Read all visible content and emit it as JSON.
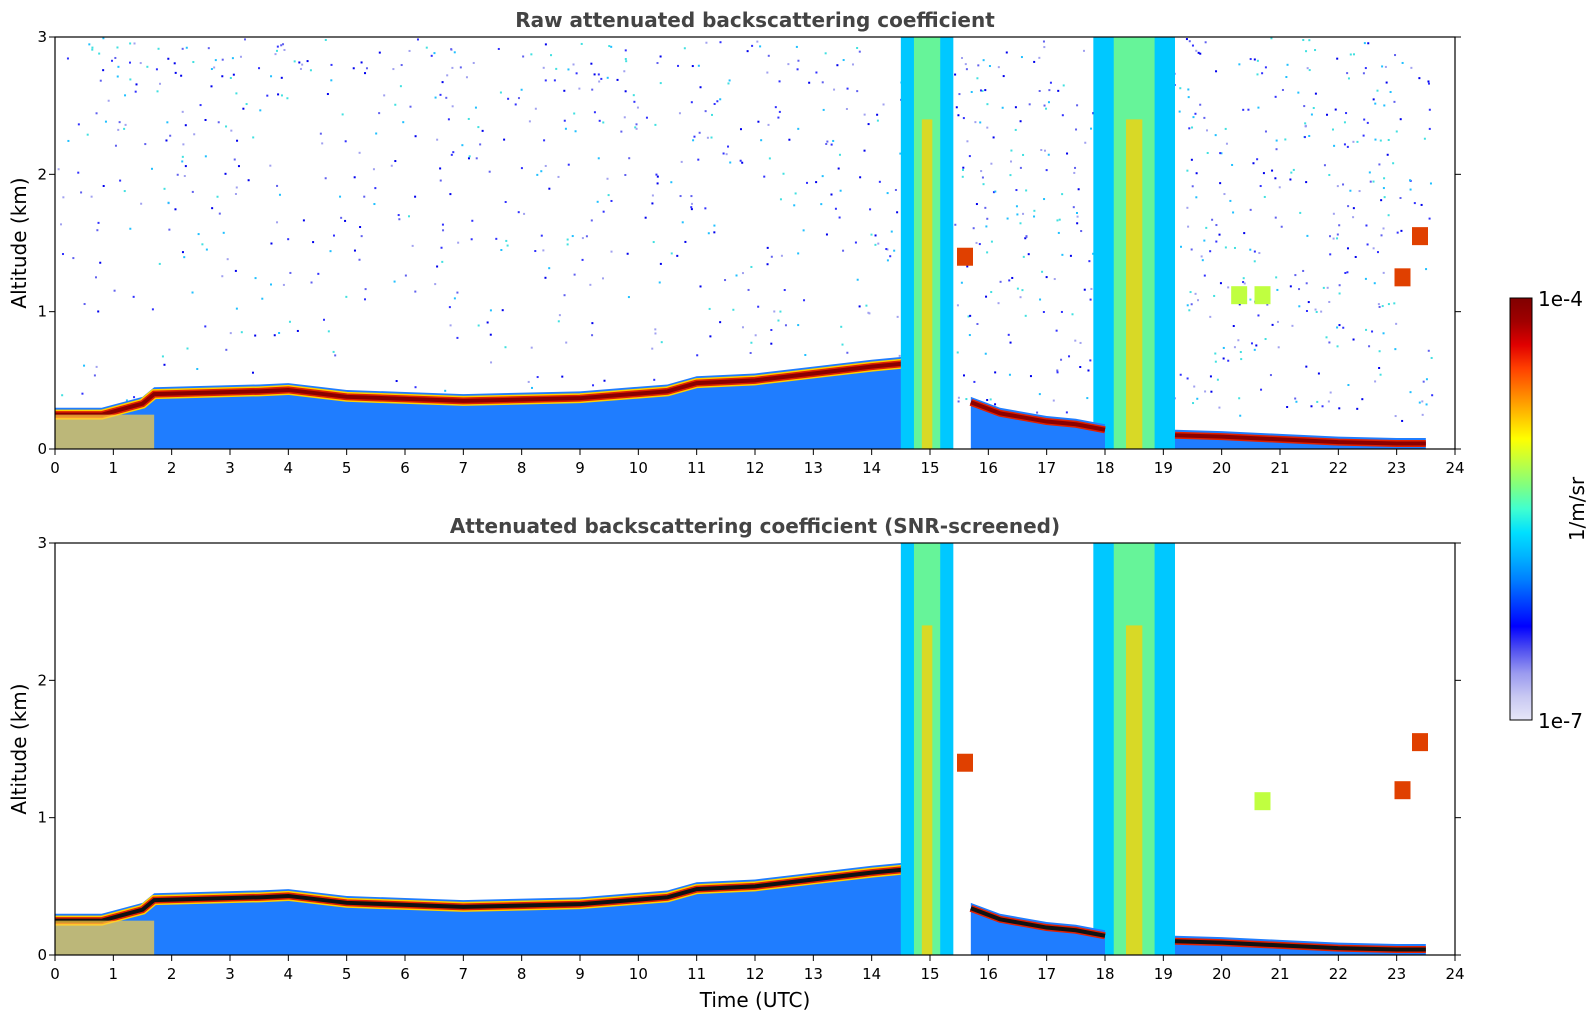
{
  "chart_data": [
    {
      "type": "heatmap",
      "title": "Raw attenuated backscattering coefficient",
      "xlabel": "",
      "ylabel": "Altitude (km)",
      "xlim": [
        0,
        24
      ],
      "ylim": [
        0,
        3
      ],
      "x_ticks": [
        "0",
        "1",
        "2",
        "3",
        "4",
        "5",
        "6",
        "7",
        "8",
        "9",
        "10",
        "11",
        "12",
        "13",
        "14",
        "15",
        "16",
        "17",
        "18",
        "19",
        "20",
        "21",
        "22",
        "23",
        "24"
      ],
      "y_ticks": [
        "0",
        "1",
        "2",
        "3"
      ],
      "boundary_layer_top_km": [
        [
          0,
          0.3
        ],
        [
          0.8,
          0.3
        ],
        [
          1.5,
          0.38
        ],
        [
          1.7,
          0.45
        ],
        [
          3.5,
          0.47
        ],
        [
          4,
          0.48
        ],
        [
          5,
          0.43
        ],
        [
          7,
          0.4
        ],
        [
          9,
          0.42
        ],
        [
          10.5,
          0.47
        ],
        [
          11,
          0.53
        ],
        [
          12,
          0.55
        ],
        [
          13,
          0.6
        ],
        [
          14,
          0.65
        ],
        [
          14.5,
          0.67
        ],
        [
          14.9,
          0.7
        ]
      ],
      "post_cloud_layer_km": [
        [
          15.7,
          0.38
        ],
        [
          16.2,
          0.3
        ],
        [
          17,
          0.24
        ],
        [
          17.5,
          0.22
        ],
        [
          18,
          0.18
        ]
      ],
      "night_layer_km": [
        [
          19.2,
          0.14
        ],
        [
          20,
          0.13
        ],
        [
          21,
          0.11
        ],
        [
          22,
          0.09
        ],
        [
          23,
          0.08
        ],
        [
          23.5,
          0.08
        ]
      ],
      "precip_columns": [
        [
          14.5,
          15.4
        ],
        [
          17.8,
          19.2
        ]
      ],
      "elevated_features": [
        {
          "x": 15.6,
          "y": 1.4,
          "level": "high"
        },
        {
          "x": 20.3,
          "y": 1.12,
          "level": "mid"
        },
        {
          "x": 20.7,
          "y": 1.12,
          "level": "mid"
        },
        {
          "x": 23.1,
          "y": 1.25,
          "level": "high"
        },
        {
          "x": 23.4,
          "y": 1.55,
          "level": "high"
        }
      ],
      "noise_present": true
    },
    {
      "type": "heatmap",
      "title": "Attenuated backscattering coefficient (SNR-screened)",
      "xlabel": "Time (UTC)",
      "ylabel": "Altitude (km)",
      "xlim": [
        0,
        24
      ],
      "ylim": [
        0,
        3
      ],
      "x_ticks": [
        "0",
        "1",
        "2",
        "3",
        "4",
        "5",
        "6",
        "7",
        "8",
        "9",
        "10",
        "11",
        "12",
        "13",
        "14",
        "15",
        "16",
        "17",
        "18",
        "19",
        "20",
        "21",
        "22",
        "23",
        "24"
      ],
      "y_ticks": [
        "0",
        "1",
        "2",
        "3"
      ],
      "boundary_layer_top_km": [
        [
          0,
          0.3
        ],
        [
          0.8,
          0.3
        ],
        [
          1.5,
          0.38
        ],
        [
          1.7,
          0.45
        ],
        [
          3.5,
          0.47
        ],
        [
          4,
          0.48
        ],
        [
          5,
          0.43
        ],
        [
          7,
          0.4
        ],
        [
          9,
          0.42
        ],
        [
          10.5,
          0.47
        ],
        [
          11,
          0.53
        ],
        [
          12,
          0.55
        ],
        [
          13,
          0.6
        ],
        [
          14,
          0.65
        ],
        [
          14.5,
          0.67
        ],
        [
          14.9,
          0.7
        ]
      ],
      "post_cloud_layer_km": [
        [
          15.7,
          0.38
        ],
        [
          16.2,
          0.3
        ],
        [
          17,
          0.24
        ],
        [
          17.5,
          0.22
        ],
        [
          18,
          0.18
        ]
      ],
      "night_layer_km": [
        [
          19.2,
          0.14
        ],
        [
          20,
          0.13
        ],
        [
          21,
          0.11
        ],
        [
          22,
          0.09
        ],
        [
          23,
          0.08
        ],
        [
          23.5,
          0.08
        ]
      ],
      "precip_columns": [
        [
          14.5,
          15.4
        ],
        [
          17.8,
          19.2
        ]
      ],
      "elevated_features": [
        {
          "x": 15.6,
          "y": 1.4,
          "level": "high"
        },
        {
          "x": 20.7,
          "y": 1.12,
          "level": "mid"
        },
        {
          "x": 23.1,
          "y": 1.2,
          "level": "high"
        },
        {
          "x": 23.4,
          "y": 1.55,
          "level": "high"
        }
      ],
      "noise_present": false
    }
  ],
  "colorbar": {
    "label": "1/m/sr",
    "max_label": "1e-4",
    "min_label": "1e-7",
    "colors": [
      "#e6e6f8",
      "#c8c8f2",
      "#9a9af0",
      "#5050f0",
      "#0000ff",
      "#0040ff",
      "#0080ff",
      "#00b4ff",
      "#00e0ff",
      "#40ffd0",
      "#80ff80",
      "#c0ff40",
      "#ffff00",
      "#ffc000",
      "#ff8000",
      "#ff4000",
      "#e00000",
      "#a00000",
      "#800000"
    ]
  }
}
